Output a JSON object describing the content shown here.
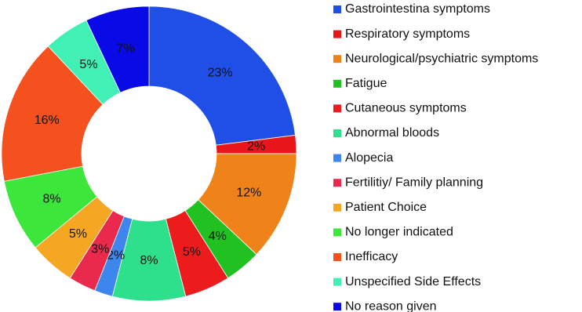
{
  "chart_data": {
    "type": "donut",
    "categories": [
      "Gastrointestina symptoms",
      "Respiratory symptoms",
      "Neurological/psychiatric symptoms",
      "Fatigue",
      "Cutaneous symptoms",
      "Abnormal bloods",
      "Alopecia",
      "Fertilitiy/ Family planning",
      "Patient Choice",
      "No longer indicated",
      "Inefficacy",
      "Unspecified Side Effects",
      "No reason given"
    ],
    "values": [
      23,
      2,
      12,
      4,
      5,
      8,
      2,
      3,
      5,
      8,
      16,
      5,
      7
    ],
    "value_labels": [
      "23%",
      "2%",
      "12%",
      "4%",
      "5%",
      "8%",
      "2%",
      "3%",
      "5%",
      "8%",
      "16%",
      "5%",
      "7%"
    ],
    "colors": [
      "#1f4fe6",
      "#e8161b",
      "#f0821a",
      "#22c122",
      "#ec1c1c",
      "#2ee08c",
      "#3d86ee",
      "#ea2a4c",
      "#f5a623",
      "#3ce63a",
      "#f4511e",
      "#40f0b4",
      "#0a0ae6"
    ],
    "legend": "right"
  }
}
